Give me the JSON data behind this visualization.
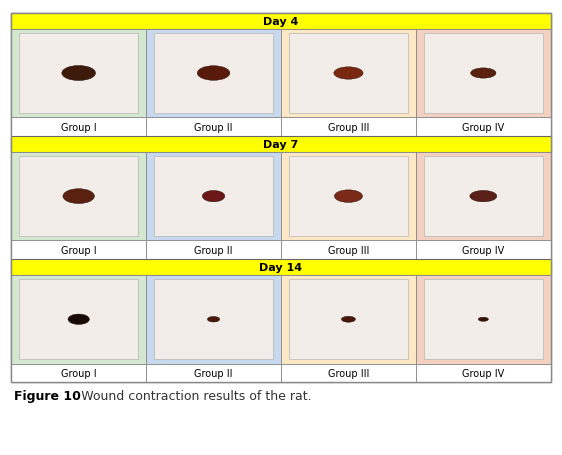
{
  "title": "Figure 10: Wound contraction results of the rat.",
  "days": [
    "Day 4",
    "Day 7",
    "Day 14"
  ],
  "groups": [
    "Group I",
    "Group II",
    "Group III",
    "Group IV"
  ],
  "header_bg": "#FFFF00",
  "header_text_color": "#000000",
  "cell_bg_colors": [
    "#d4e8d0",
    "#c8d8ee",
    "#fce8c4",
    "#f4d0c0"
  ],
  "label_bg": "#ffffff",
  "outer_border_color": "#888888",
  "grid_color": "#888888",
  "fig_bg": "#ffffff",
  "header_fontsize": 8,
  "group_fontsize": 7,
  "caption_fontsize": 9,
  "caption_bold_part": "Figure 10",
  "caption_normal_part": ": Wound contraction results of the rat.",
  "wound_colors_day4": [
    "#3d1a0a",
    "#5a1a0a",
    "#7a2810",
    "#5a2010"
  ],
  "wound_colors_day7": [
    "#5a2010",
    "#6a1818",
    "#7a2818",
    "#5a2018"
  ],
  "wound_colors_day14": [
    "#1a0a04",
    "#4a1808",
    "#4a1808",
    "#3a1208"
  ],
  "photo_bg": "#f0ece6"
}
